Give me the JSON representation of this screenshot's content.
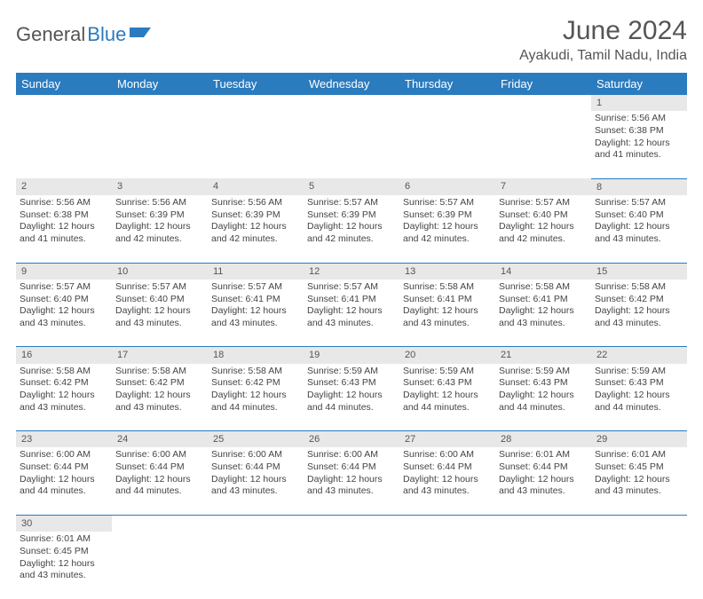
{
  "logo": {
    "main": "General",
    "sub": "Blue"
  },
  "title": "June 2024",
  "location": "Ayakudi, Tamil Nadu, India",
  "weekdays": [
    "Sunday",
    "Monday",
    "Tuesday",
    "Wednesday",
    "Thursday",
    "Friday",
    "Saturday"
  ],
  "colors": {
    "header_bg": "#2b7bbf",
    "header_text": "#ffffff",
    "daynum_bg": "#e8e8e8",
    "border": "#2b7bbf",
    "text": "#444444",
    "title_text": "#555555"
  },
  "weeks": [
    [
      null,
      null,
      null,
      null,
      null,
      null,
      {
        "n": "1",
        "sr": "5:56 AM",
        "ss": "6:38 PM",
        "dl": "12 hours and 41 minutes."
      }
    ],
    [
      {
        "n": "2",
        "sr": "5:56 AM",
        "ss": "6:38 PM",
        "dl": "12 hours and 41 minutes."
      },
      {
        "n": "3",
        "sr": "5:56 AM",
        "ss": "6:39 PM",
        "dl": "12 hours and 42 minutes."
      },
      {
        "n": "4",
        "sr": "5:56 AM",
        "ss": "6:39 PM",
        "dl": "12 hours and 42 minutes."
      },
      {
        "n": "5",
        "sr": "5:57 AM",
        "ss": "6:39 PM",
        "dl": "12 hours and 42 minutes."
      },
      {
        "n": "6",
        "sr": "5:57 AM",
        "ss": "6:39 PM",
        "dl": "12 hours and 42 minutes."
      },
      {
        "n": "7",
        "sr": "5:57 AM",
        "ss": "6:40 PM",
        "dl": "12 hours and 42 minutes."
      },
      {
        "n": "8",
        "sr": "5:57 AM",
        "ss": "6:40 PM",
        "dl": "12 hours and 43 minutes."
      }
    ],
    [
      {
        "n": "9",
        "sr": "5:57 AM",
        "ss": "6:40 PM",
        "dl": "12 hours and 43 minutes."
      },
      {
        "n": "10",
        "sr": "5:57 AM",
        "ss": "6:40 PM",
        "dl": "12 hours and 43 minutes."
      },
      {
        "n": "11",
        "sr": "5:57 AM",
        "ss": "6:41 PM",
        "dl": "12 hours and 43 minutes."
      },
      {
        "n": "12",
        "sr": "5:57 AM",
        "ss": "6:41 PM",
        "dl": "12 hours and 43 minutes."
      },
      {
        "n": "13",
        "sr": "5:58 AM",
        "ss": "6:41 PM",
        "dl": "12 hours and 43 minutes."
      },
      {
        "n": "14",
        "sr": "5:58 AM",
        "ss": "6:41 PM",
        "dl": "12 hours and 43 minutes."
      },
      {
        "n": "15",
        "sr": "5:58 AM",
        "ss": "6:42 PM",
        "dl": "12 hours and 43 minutes."
      }
    ],
    [
      {
        "n": "16",
        "sr": "5:58 AM",
        "ss": "6:42 PM",
        "dl": "12 hours and 43 minutes."
      },
      {
        "n": "17",
        "sr": "5:58 AM",
        "ss": "6:42 PM",
        "dl": "12 hours and 43 minutes."
      },
      {
        "n": "18",
        "sr": "5:58 AM",
        "ss": "6:42 PM",
        "dl": "12 hours and 44 minutes."
      },
      {
        "n": "19",
        "sr": "5:59 AM",
        "ss": "6:43 PM",
        "dl": "12 hours and 44 minutes."
      },
      {
        "n": "20",
        "sr": "5:59 AM",
        "ss": "6:43 PM",
        "dl": "12 hours and 44 minutes."
      },
      {
        "n": "21",
        "sr": "5:59 AM",
        "ss": "6:43 PM",
        "dl": "12 hours and 44 minutes."
      },
      {
        "n": "22",
        "sr": "5:59 AM",
        "ss": "6:43 PM",
        "dl": "12 hours and 44 minutes."
      }
    ],
    [
      {
        "n": "23",
        "sr": "6:00 AM",
        "ss": "6:44 PM",
        "dl": "12 hours and 44 minutes."
      },
      {
        "n": "24",
        "sr": "6:00 AM",
        "ss": "6:44 PM",
        "dl": "12 hours and 44 minutes."
      },
      {
        "n": "25",
        "sr": "6:00 AM",
        "ss": "6:44 PM",
        "dl": "12 hours and 43 minutes."
      },
      {
        "n": "26",
        "sr": "6:00 AM",
        "ss": "6:44 PM",
        "dl": "12 hours and 43 minutes."
      },
      {
        "n": "27",
        "sr": "6:00 AM",
        "ss": "6:44 PM",
        "dl": "12 hours and 43 minutes."
      },
      {
        "n": "28",
        "sr": "6:01 AM",
        "ss": "6:44 PM",
        "dl": "12 hours and 43 minutes."
      },
      {
        "n": "29",
        "sr": "6:01 AM",
        "ss": "6:45 PM",
        "dl": "12 hours and 43 minutes."
      }
    ],
    [
      {
        "n": "30",
        "sr": "6:01 AM",
        "ss": "6:45 PM",
        "dl": "12 hours and 43 minutes."
      },
      null,
      null,
      null,
      null,
      null,
      null
    ]
  ],
  "labels": {
    "sunrise": "Sunrise:",
    "sunset": "Sunset:",
    "daylight": "Daylight:"
  }
}
